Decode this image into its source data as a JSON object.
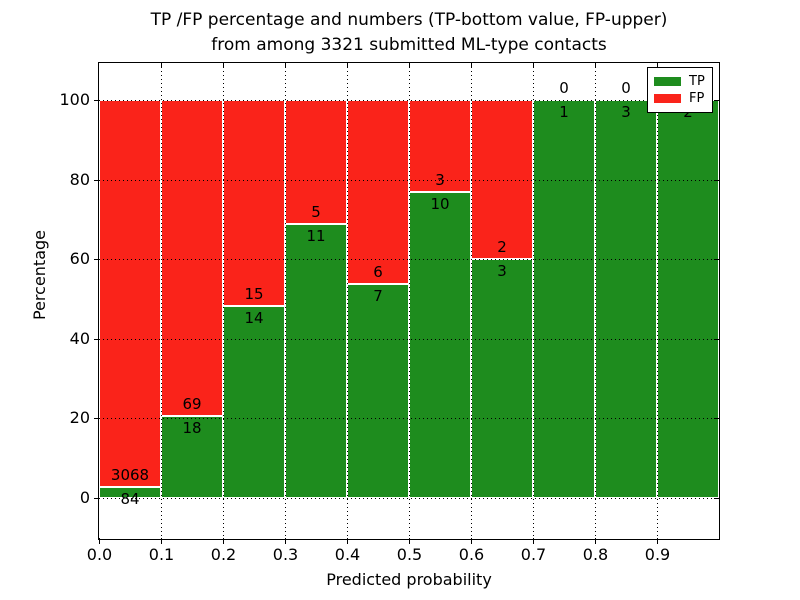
{
  "chart_data": {
    "type": "bar",
    "stacked": true,
    "orientation": "vertical",
    "title_line1": "TP /FP percentage and numbers (TP-bottom value, FP-upper)",
    "title_line2": "from among 3321 submitted ML-type contacts",
    "xlabel": "Predicted probability",
    "ylabel": "Percentage",
    "x_tick_labels": [
      "0.0",
      "0.1",
      "0.2",
      "0.3",
      "0.4",
      "0.5",
      "0.6",
      "0.7",
      "0.8",
      "0.9"
    ],
    "y_tick_values": [
      0,
      20,
      40,
      60,
      80,
      100
    ],
    "y_tick_labels": [
      "0",
      "20",
      "40",
      "60",
      "80",
      "100"
    ],
    "ylim": [
      -10.5,
      109.5
    ],
    "xlim": [
      0.0,
      1.0
    ],
    "bin_width": 0.1,
    "grid": "dotted",
    "note": "Each bar normalized to 100%; labels at TP/FP boundary: TP count below, FP count above",
    "total_contacts": 3321,
    "categories": [
      "0.0-0.1",
      "0.1-0.2",
      "0.2-0.3",
      "0.3-0.4",
      "0.4-0.5",
      "0.5-0.6",
      "0.6-0.7",
      "0.7-0.8",
      "0.8-0.9",
      "0.9-1.0"
    ],
    "series": [
      {
        "name": "TP",
        "color": "#1e8c1e",
        "values": [
          84,
          18,
          14,
          11,
          7,
          10,
          3,
          1,
          3,
          2
        ]
      },
      {
        "name": "FP",
        "color": "#fa231a",
        "values": [
          3068,
          69,
          15,
          5,
          6,
          3,
          2,
          0,
          0,
          0
        ]
      }
    ],
    "tp_percentages": [
      2.67,
      20.69,
      48.28,
      68.75,
      53.85,
      76.92,
      60.0,
      100.0,
      100.0,
      100.0
    ],
    "legend": {
      "position": "upper right",
      "items": [
        {
          "label": "TP",
          "color": "#1e8c1e"
        },
        {
          "label": "FP",
          "color": "#fa231a"
        }
      ]
    }
  }
}
